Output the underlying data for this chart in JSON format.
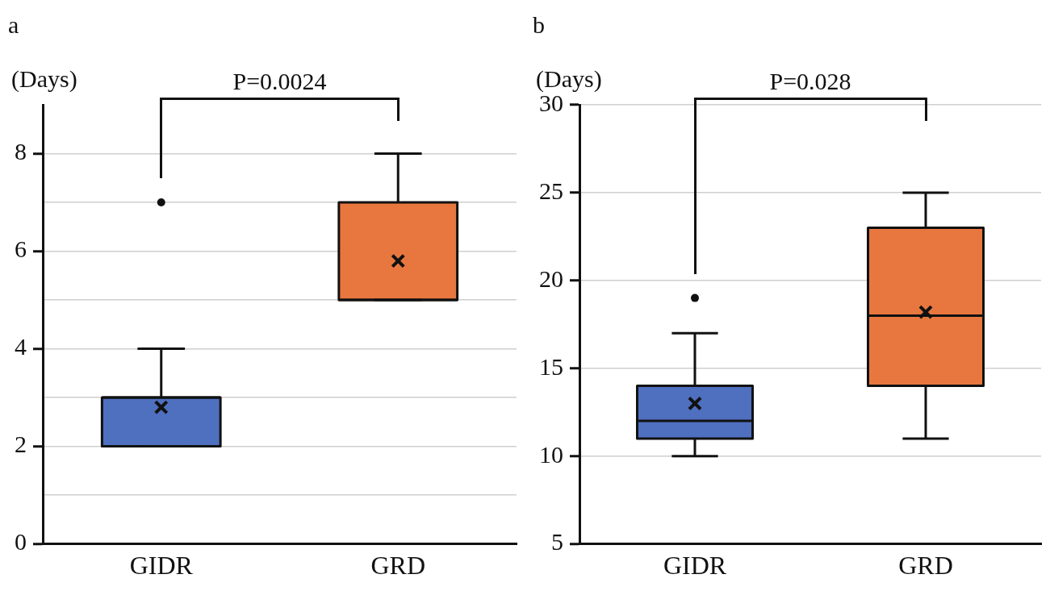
{
  "chart_data": [
    {
      "type": "box",
      "title": "a",
      "ylabel": "(Days)",
      "categories": [
        "GIDR",
        "GRD"
      ],
      "colors": [
        "#4f6fbf",
        "#e8773f"
      ],
      "boxes": [
        {
          "low": 2,
          "q1": 2,
          "median": 3,
          "q3": 3,
          "high": 4,
          "mean": 2.8,
          "outliers": [
            7
          ]
        },
        {
          "low": 5,
          "q1": 5,
          "median": 5,
          "q3": 7,
          "high": 8,
          "mean": 5.8
        }
      ],
      "ylim": [
        0,
        9
      ],
      "yticks": [
        0,
        {
          "value": 1,
          "label": null
        },
        2,
        {
          "value": 3,
          "label": null
        },
        4,
        {
          "value": 5,
          "label": null
        },
        6,
        {
          "value": 7,
          "label": null
        },
        8
      ],
      "grid": "y",
      "legend": false,
      "annotations": [
        "P=0.0024"
      ]
    },
    {
      "type": "box",
      "title": "b",
      "ylabel": "(Days)",
      "categories": [
        "GIDR",
        "GRD"
      ],
      "colors": [
        "#4f6fbf",
        "#e8773f"
      ],
      "boxes": [
        {
          "low": 10,
          "q1": 11,
          "median": 12,
          "q3": 14,
          "high": 17,
          "mean": 13,
          "outliers": [
            19
          ]
        },
        {
          "low": 11,
          "q1": 14,
          "median": 18,
          "q3": 23,
          "high": 25,
          "mean": 18.2
        }
      ],
      "ylim": [
        5,
        30
      ],
      "yticks": [
        5,
        10,
        15,
        20,
        25,
        30
      ],
      "grid": "y",
      "legend": false,
      "annotations": [
        "P=0.028"
      ]
    }
  ]
}
